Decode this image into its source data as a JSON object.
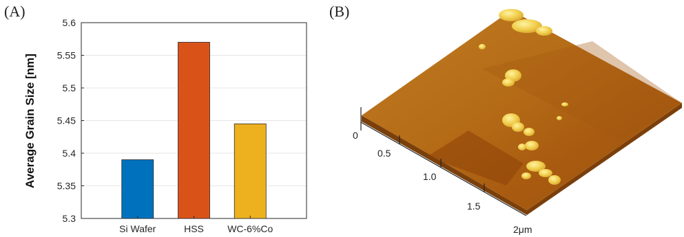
{
  "panel_a_label": "(A)",
  "panel_b_label": "(B)",
  "chart_data": [
    {
      "type": "bar",
      "ylabel": "Average Grain Size [nm]",
      "xlabel": "",
      "categories": [
        "Si Wafer",
        "HSS",
        "WC-6%Co"
      ],
      "values": [
        5.39,
        5.57,
        5.445
      ],
      "colors": [
        "#0072BD",
        "#D95319",
        "#EDB120"
      ],
      "ylim": [
        5.3,
        5.6
      ],
      "yticks": [
        "5.3",
        "5.35",
        "5.4",
        "5.45",
        "5.5",
        "5.55",
        "5.6"
      ],
      "grid": "horizontal"
    }
  ],
  "afm": {
    "vertical_tick": "0",
    "axis_ticks": [
      "0.5",
      "1.0",
      "1.5",
      "2μm"
    ],
    "surface_colors": [
      "#a0540c",
      "#c47e1e",
      "#f5d25a"
    ]
  }
}
